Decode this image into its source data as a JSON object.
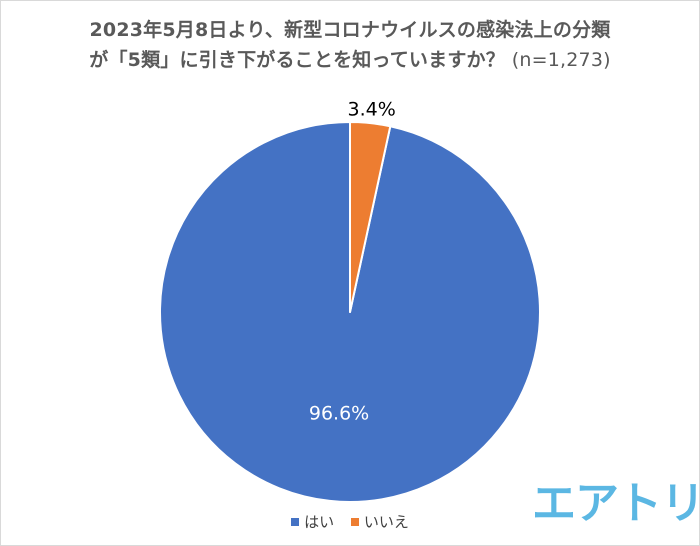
{
  "title": {
    "line1": "2023年5月8日より、新型コロナウイルスの感染法上の分類",
    "line2": "が「5類」に引き下がることを知っていますか？",
    "sample_size": "(n=1,273)"
  },
  "chart_data": {
    "type": "pie",
    "categories": [
      "はい",
      "いいえ"
    ],
    "values": [
      96.6,
      3.4
    ],
    "labels": [
      "96.6%",
      "3.4%"
    ],
    "colors": [
      "#4472c4",
      "#ed7d31"
    ],
    "start_angle": "12 o'clock",
    "direction": "counter-clockwise",
    "legend": "bottom"
  },
  "logo": {
    "text": "エアトリ",
    "color": "#5bb7e3"
  }
}
